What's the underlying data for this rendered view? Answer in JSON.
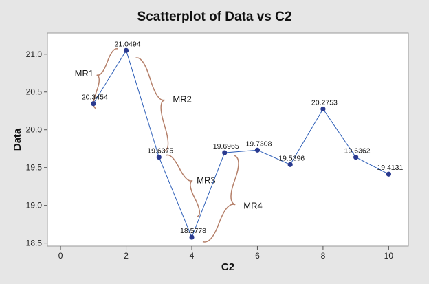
{
  "chart_data": {
    "type": "scatter",
    "title": "Scatterplot of Data vs C2",
    "xlabel": "C2",
    "ylabel": "Data",
    "xlim": [
      -0.4,
      10.6
    ],
    "ylim": [
      18.46,
      21.28
    ],
    "x_ticks": [
      0,
      2,
      4,
      6,
      8,
      10
    ],
    "y_ticks": [
      18.5,
      19.0,
      19.5,
      20.0,
      20.5,
      21.0
    ],
    "y_tick_labels": [
      "18.5",
      "19.0",
      "19.5",
      "20.0",
      "20.5",
      "21.0"
    ],
    "grid": false,
    "connected": true,
    "series": [
      {
        "x": [
          1,
          2,
          3,
          4,
          5,
          6,
          7,
          8,
          9,
          10
        ],
        "y": [
          20.3454,
          21.0494,
          19.6375,
          18.5778,
          19.6965,
          19.7308,
          19.5396,
          20.2753,
          19.6362,
          19.4131
        ],
        "labels": [
          "20.3454",
          "21.0494",
          "19.6375",
          "18.5778",
          "19.6965",
          "19.7308",
          "19.5396",
          "20.2753",
          "19.6362",
          "19.4131"
        ]
      }
    ],
    "annotations": [
      {
        "text": "MR1",
        "from": 1,
        "to": 2
      },
      {
        "text": "MR2",
        "from": 2,
        "to": 3
      },
      {
        "text": "MR3",
        "from": 3,
        "to": 4
      },
      {
        "text": "MR4",
        "from": 4,
        "to": 5
      }
    ],
    "colors": {
      "marker": "#2a3a8f",
      "line": "#2e5fb8",
      "bracket": "#b5806a",
      "plot_bg": "#ffffff",
      "page_bg": "#e6e6e6"
    }
  }
}
